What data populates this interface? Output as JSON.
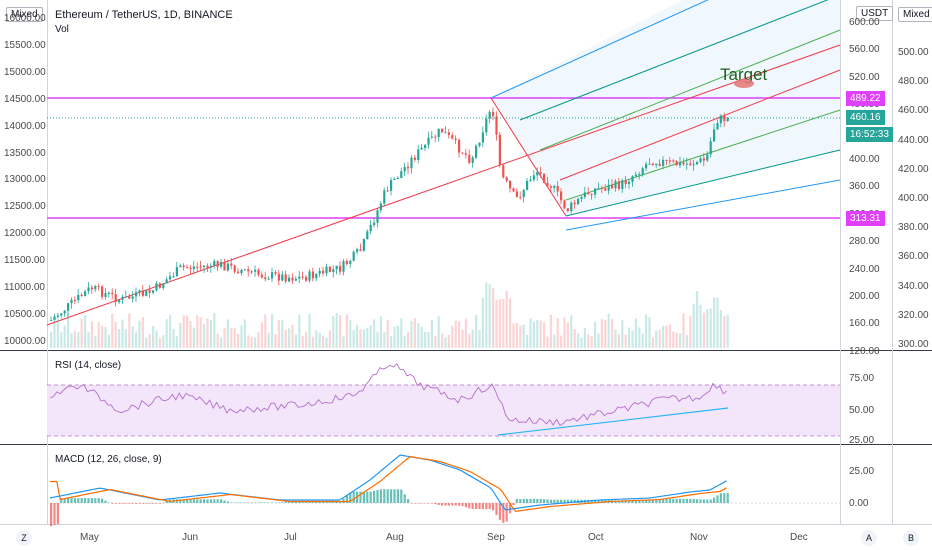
{
  "header": {
    "symbol_title": "Ethereum / TetherUS, 1D, BINANCE",
    "vol_label": "Vol",
    "left_scale_mode": "Mixed",
    "right_scale_mode": "Mixed",
    "currency_label": "USDT"
  },
  "left_axis": {
    "labels": [
      "16000.00",
      "15500.00",
      "15000.00",
      "14500.00",
      "14000.00",
      "13500.00",
      "13000.00",
      "12500.00",
      "12000.00",
      "11500.00",
      "11000.00",
      "10500.00",
      "10000.00"
    ]
  },
  "right_axis": {
    "price_labels": [
      "600.00",
      "560.00",
      "520.00",
      "480.00",
      "440.00",
      "400.00",
      "360.00",
      "320.00",
      "280.00",
      "240.00",
      "200.00",
      "160.00",
      "120.00"
    ],
    "outer_labels": [
      "500.00",
      "480.00",
      "460.00",
      "440.00",
      "420.00",
      "400.00",
      "380.00",
      "360.00",
      "340.00",
      "320.00",
      "300.00"
    ]
  },
  "price_badges": {
    "resistance": "489.22",
    "last_price": "460.16",
    "countdown": "16:52:33",
    "support": "313.31"
  },
  "annotation": {
    "target_text": "Target"
  },
  "rsi": {
    "title": "RSI (14, close)",
    "levels": [
      "75.00",
      "50.00",
      "25.00"
    ]
  },
  "macd": {
    "title": "MACD (12, 26, close, 9)",
    "levels": [
      "25.00",
      "0.00"
    ]
  },
  "time_axis": {
    "labels": [
      "May",
      "Jun",
      "Jul",
      "Aug",
      "Sep",
      "Oct",
      "Nov",
      "Dec"
    ]
  },
  "corner_buttons": {
    "left": "Z",
    "auto": "A",
    "log": "B"
  },
  "colors": {
    "up": "#26a69a",
    "down": "#ef5350",
    "horizontal_levels": "#e040fb",
    "last_price_badge": "#26a69a",
    "countdown_badge": "#26a69a",
    "trend_line": "#f23645",
    "pitchfork_outer": "#2196f3",
    "pitchfork_inner": "#4caf50",
    "rsi_line": "#b36ec9",
    "rsi_band": "#f3e6fb",
    "macd_line": "#2196f3",
    "signal_line": "#ff6d00"
  }
}
